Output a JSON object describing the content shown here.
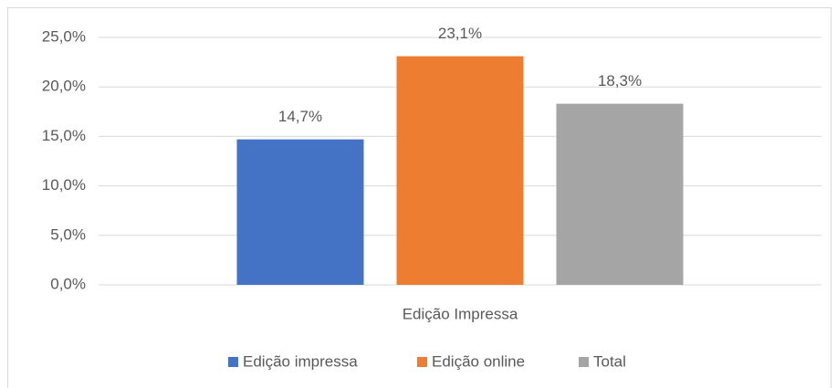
{
  "chart_data": {
    "type": "bar",
    "categories": [
      "Edição Impressa"
    ],
    "series": [
      {
        "name": "Edição impressa",
        "color": "#4472c4",
        "values": [
          14.7
        ],
        "value_labels": [
          "14,7%"
        ]
      },
      {
        "name": "Edição online",
        "color": "#ed7d31",
        "values": [
          23.1
        ],
        "value_labels": [
          "23,1%"
        ]
      },
      {
        "name": "Total",
        "color": "#a5a5a5",
        "values": [
          18.3
        ],
        "value_labels": [
          "18,3%"
        ]
      }
    ],
    "ylim": [
      0,
      25
    ],
    "yticks": [
      {
        "value": 0,
        "label": "0,0%"
      },
      {
        "value": 5,
        "label": "5,0%"
      },
      {
        "value": 10,
        "label": "10,0%"
      },
      {
        "value": 15,
        "label": "15,0%"
      },
      {
        "value": 20,
        "label": "20,0%"
      },
      {
        "value": 25,
        "label": "25,0%"
      }
    ],
    "grid": true,
    "legend": "bottom"
  }
}
